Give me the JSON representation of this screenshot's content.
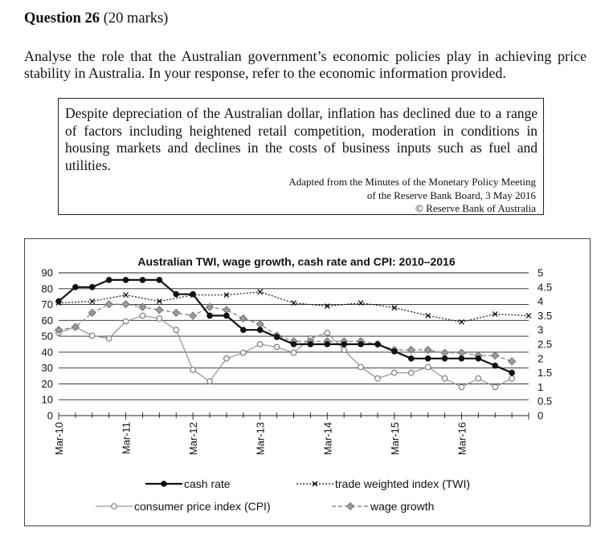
{
  "question": {
    "number_label": "Question 26",
    "marks_label": "(20 marks)",
    "prompt": "Analyse the role that the Australian government’s economic policies play in achieving price stability in Australia. In your response, refer to the economic information provided."
  },
  "extract": {
    "text": "Despite depreciation of the Australian dollar, inflation has declined due to a range of factors including heightened retail competition, moderation in conditions in housing markets and declines in the costs of business inputs such as fuel and utilities.",
    "source_line1": "Adapted from the Minutes of the Monetary Policy Meeting",
    "source_line2": "of the Reserve Bank Board, 3 May 2016",
    "source_line3": "© Reserve Bank of Australia"
  },
  "chart_data": {
    "type": "line",
    "title": "Australian TWI, wage growth, cash rate and CPI: 2010–2016",
    "x_tick_labels": [
      "Mar-10",
      "Mar-11",
      "Mar-12",
      "Mar-13",
      "Mar-14",
      "Mar-15",
      "Mar-16"
    ],
    "x_quarters_total": 28,
    "left_axis": {
      "min": 0,
      "max": 90,
      "ticks": [
        "0",
        "10",
        "20",
        "30",
        "40",
        "50",
        "60",
        "70",
        "80",
        "90"
      ]
    },
    "right_axis": {
      "min": 0,
      "max": 5,
      "ticks": [
        "0",
        "0.5",
        "1",
        "1.5",
        "2",
        "2.5",
        "3",
        "3.5",
        "4",
        "4.5",
        "5"
      ]
    },
    "grid": "horizontal",
    "legend_placement": "bottom",
    "series": [
      {
        "name": "cash rate",
        "axis": "right",
        "style": "solid-black-filled-circle",
        "color": "#111111",
        "x": [
          0,
          1,
          2,
          3,
          4,
          5,
          6,
          7,
          8,
          9,
          10,
          11,
          12,
          13,
          14,
          15,
          16,
          17,
          18,
          19,
          20,
          21,
          22,
          23,
          24,
          25,
          26,
          27
        ],
        "values": [
          4.0,
          4.5,
          4.5,
          4.75,
          4.75,
          4.75,
          4.75,
          4.25,
          4.25,
          3.5,
          3.5,
          3.0,
          3.0,
          2.75,
          2.5,
          2.5,
          2.5,
          2.5,
          2.5,
          2.5,
          2.25,
          2.0,
          2.0,
          2.0,
          2.0,
          2.0,
          1.75,
          1.5
        ]
      },
      {
        "name": "trade weighted index (TWI)",
        "axis": "left",
        "style": "dotted-black-cross",
        "color": "#111111",
        "x": [
          0,
          2,
          4,
          6,
          8,
          10,
          12,
          14,
          16,
          18,
          20,
          22,
          24,
          26,
          28
        ],
        "values": [
          71,
          72,
          76,
          72,
          76,
          76,
          78,
          71,
          69,
          71,
          68,
          63,
          59,
          64,
          63
        ]
      },
      {
        "name": "consumer price index (CPI)",
        "axis": "right",
        "style": "solid-grey-open-circle",
        "color": "#999999",
        "x": [
          0,
          1,
          2,
          3,
          4,
          5,
          6,
          7,
          8,
          9,
          10,
          11,
          12,
          13,
          14,
          15,
          16,
          17,
          18,
          19,
          20,
          21,
          22,
          23,
          24,
          25,
          26,
          27
        ],
        "values": [
          2.9,
          3.1,
          2.8,
          2.7,
          3.3,
          3.5,
          3.4,
          3.0,
          1.6,
          1.2,
          2.0,
          2.2,
          2.5,
          2.4,
          2.2,
          2.7,
          2.9,
          2.3,
          1.7,
          1.3,
          1.5,
          1.5,
          1.7,
          1.3,
          1.0,
          1.3,
          1.0,
          1.3
        ]
      },
      {
        "name": "wage growth",
        "axis": "right",
        "style": "dashed-grey-diamond",
        "color": "#888888",
        "x": [
          0,
          1,
          2,
          3,
          4,
          5,
          6,
          7,
          8,
          9,
          10,
          11,
          12,
          13,
          14,
          15,
          16,
          17,
          18,
          19,
          20,
          21,
          22,
          23,
          24,
          25,
          26,
          27
        ],
        "values": [
          3.0,
          3.1,
          3.6,
          3.9,
          3.9,
          3.8,
          3.7,
          3.6,
          3.5,
          3.8,
          3.7,
          3.4,
          3.2,
          2.8,
          2.6,
          2.6,
          2.6,
          2.6,
          2.6,
          2.5,
          2.3,
          2.3,
          2.3,
          2.2,
          2.2,
          2.1,
          2.1,
          1.9
        ]
      }
    ]
  }
}
